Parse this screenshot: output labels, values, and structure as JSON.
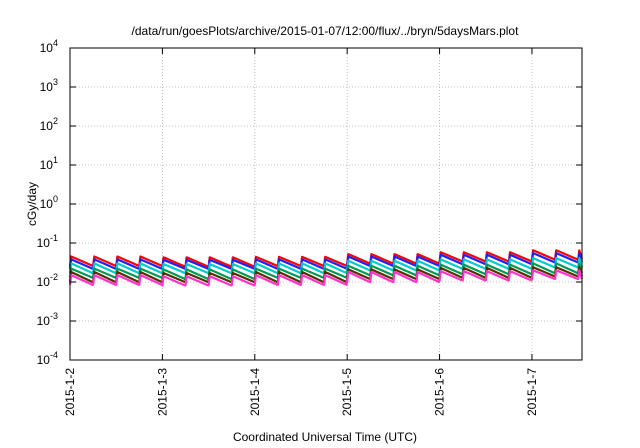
{
  "chart_data": {
    "type": "line",
    "title": "/data/run/goesPlots/archive/2015-01-07/12:00/flux/../bryn/5daysMars.plot",
    "xlabel": "Coordinated Universal Time (UTC)",
    "ylabel": "cGy/day",
    "yscale": "log",
    "grid": true,
    "x_range": [
      "2015-01-02 00:00",
      "2015-01-07 13:00"
    ],
    "x_ticks": [
      "2015-1-2",
      "2015-1-3",
      "2015-1-4",
      "2015-1-5",
      "2015-1-6",
      "2015-1-7"
    ],
    "y_ticks": [
      {
        "base": "10",
        "exp": "-4",
        "value": 0.0001
      },
      {
        "base": "10",
        "exp": "-3",
        "value": 0.001
      },
      {
        "base": "10",
        "exp": "-2",
        "value": 0.01
      },
      {
        "base": "10",
        "exp": "-1",
        "value": 0.1
      },
      {
        "base": "10",
        "exp": "0",
        "value": 1
      },
      {
        "base": "10",
        "exp": "1",
        "value": 10
      },
      {
        "base": "10",
        "exp": "2",
        "value": 100
      },
      {
        "base": "10",
        "exp": "3",
        "value": 1000
      },
      {
        "base": "10",
        "exp": "4",
        "value": 10000
      }
    ],
    "ylim": [
      0.0001,
      10000
    ],
    "pattern": "sawtooth",
    "period_hours": 6,
    "series": [
      {
        "color": "#ff0000",
        "levels_per_day": [
          {
            "date": "2015-01-02",
            "peak": 0.045,
            "trough": 0.026
          },
          {
            "date": "2015-01-03",
            "peak": 0.043,
            "trough": 0.025
          },
          {
            "date": "2015-01-04",
            "peak": 0.044,
            "trough": 0.026
          },
          {
            "date": "2015-01-05",
            "peak": 0.052,
            "trough": 0.03
          },
          {
            "date": "2015-01-06",
            "peak": 0.058,
            "trough": 0.034
          },
          {
            "date": "2015-01-07",
            "peak": 0.065,
            "trough": 0.038
          }
        ]
      },
      {
        "color": "#2222ee",
        "levels_per_day": [
          {
            "date": "2015-01-02",
            "peak": 0.038,
            "trough": 0.022
          },
          {
            "date": "2015-01-03",
            "peak": 0.037,
            "trough": 0.022
          },
          {
            "date": "2015-01-04",
            "peak": 0.038,
            "trough": 0.022
          },
          {
            "date": "2015-01-05",
            "peak": 0.045,
            "trough": 0.026
          },
          {
            "date": "2015-01-06",
            "peak": 0.05,
            "trough": 0.029
          },
          {
            "date": "2015-01-07",
            "peak": 0.055,
            "trough": 0.032
          }
        ]
      },
      {
        "color": "#00cccc",
        "levels_per_day": [
          {
            "date": "2015-01-02",
            "peak": 0.03,
            "trough": 0.017
          },
          {
            "date": "2015-01-03",
            "peak": 0.029,
            "trough": 0.017
          },
          {
            "date": "2015-01-04",
            "peak": 0.03,
            "trough": 0.017
          },
          {
            "date": "2015-01-05",
            "peak": 0.035,
            "trough": 0.02
          },
          {
            "date": "2015-01-06",
            "peak": 0.038,
            "trough": 0.022
          },
          {
            "date": "2015-01-07",
            "peak": 0.041,
            "trough": 0.024
          }
        ]
      },
      {
        "color": "#009955",
        "levels_per_day": [
          {
            "date": "2015-01-02",
            "peak": 0.022,
            "trough": 0.013
          },
          {
            "date": "2015-01-03",
            "peak": 0.021,
            "trough": 0.012
          },
          {
            "date": "2015-01-04",
            "peak": 0.022,
            "trough": 0.013
          },
          {
            "date": "2015-01-05",
            "peak": 0.026,
            "trough": 0.015
          },
          {
            "date": "2015-01-06",
            "peak": 0.028,
            "trough": 0.016
          },
          {
            "date": "2015-01-07",
            "peak": 0.03,
            "trough": 0.017
          }
        ]
      },
      {
        "color": "#553300",
        "levels_per_day": [
          {
            "date": "2015-01-02",
            "peak": 0.018,
            "trough": 0.01
          },
          {
            "date": "2015-01-03",
            "peak": 0.017,
            "trough": 0.01
          },
          {
            "date": "2015-01-04",
            "peak": 0.018,
            "trough": 0.01
          },
          {
            "date": "2015-01-05",
            "peak": 0.021,
            "trough": 0.012
          },
          {
            "date": "2015-01-06",
            "peak": 0.023,
            "trough": 0.013
          },
          {
            "date": "2015-01-07",
            "peak": 0.024,
            "trough": 0.014
          }
        ]
      },
      {
        "color": "#ff33cc",
        "levels_per_day": [
          {
            "date": "2015-01-02",
            "peak": 0.015,
            "trough": 0.0085
          },
          {
            "date": "2015-01-03",
            "peak": 0.014,
            "trough": 0.0082
          },
          {
            "date": "2015-01-04",
            "peak": 0.015,
            "trough": 0.0085
          },
          {
            "date": "2015-01-05",
            "peak": 0.018,
            "trough": 0.01
          },
          {
            "date": "2015-01-06",
            "peak": 0.019,
            "trough": 0.011
          },
          {
            "date": "2015-01-07",
            "peak": 0.02,
            "trough": 0.012
          }
        ]
      }
    ]
  }
}
